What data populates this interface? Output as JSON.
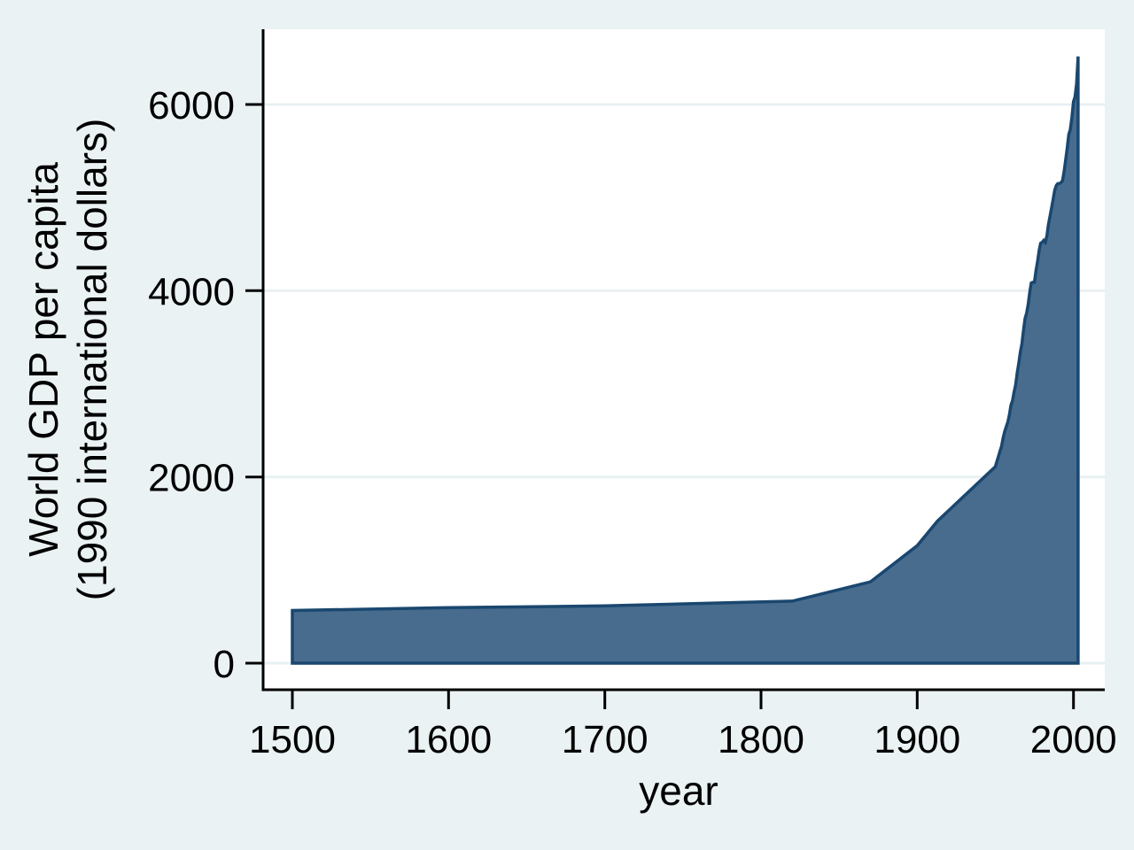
{
  "chart_data": {
    "type": "area",
    "title": "",
    "xlabel": "year",
    "ylabel_line1": "World GDP per capita",
    "ylabel_line2": "(1990 international dollars)",
    "x_ticks": [
      1500,
      1600,
      1700,
      1800,
      1900,
      2000
    ],
    "y_ticks": [
      0,
      2000,
      4000,
      6000
    ],
    "xlim": [
      1481,
      2020
    ],
    "ylim": [
      0,
      6820
    ],
    "grid": true,
    "legend_position": "none",
    "series": [
      {
        "name": "World GDP per capita (1990 international dollars)",
        "points": [
          [
            1500,
            566
          ],
          [
            1600,
            596
          ],
          [
            1700,
            615
          ],
          [
            1820,
            667
          ],
          [
            1870,
            873
          ],
          [
            1900,
            1262
          ],
          [
            1913,
            1526
          ],
          [
            1950,
            2111
          ],
          [
            1951,
            2165
          ],
          [
            1952,
            2220
          ],
          [
            1953,
            2280
          ],
          [
            1954,
            2330
          ],
          [
            1955,
            2420
          ],
          [
            1956,
            2490
          ],
          [
            1957,
            2540
          ],
          [
            1958,
            2590
          ],
          [
            1959,
            2670
          ],
          [
            1960,
            2770
          ],
          [
            1961,
            2820
          ],
          [
            1962,
            2910
          ],
          [
            1963,
            2990
          ],
          [
            1964,
            3120
          ],
          [
            1965,
            3220
          ],
          [
            1966,
            3340
          ],
          [
            1967,
            3430
          ],
          [
            1968,
            3570
          ],
          [
            1969,
            3700
          ],
          [
            1970,
            3760
          ],
          [
            1971,
            3850
          ],
          [
            1972,
            3980
          ],
          [
            1973,
            4083
          ],
          [
            1974,
            4090
          ],
          [
            1975,
            4091
          ],
          [
            1976,
            4210
          ],
          [
            1977,
            4310
          ],
          [
            1978,
            4430
          ],
          [
            1979,
            4510
          ],
          [
            1980,
            4520
          ],
          [
            1981,
            4540
          ],
          [
            1982,
            4520
          ],
          [
            1983,
            4590
          ],
          [
            1984,
            4710
          ],
          [
            1985,
            4800
          ],
          [
            1986,
            4890
          ],
          [
            1987,
            4980
          ],
          [
            1988,
            5080
          ],
          [
            1989,
            5130
          ],
          [
            1990,
            5150
          ],
          [
            1991,
            5150
          ],
          [
            1992,
            5160
          ],
          [
            1993,
            5180
          ],
          [
            1994,
            5280
          ],
          [
            1995,
            5400
          ],
          [
            1996,
            5530
          ],
          [
            1997,
            5680
          ],
          [
            1998,
            5730
          ],
          [
            1999,
            5860
          ],
          [
            2000,
            6030
          ],
          [
            2001,
            6080
          ],
          [
            2002,
            6220
          ],
          [
            2003,
            6516
          ]
        ]
      }
    ],
    "colors": {
      "page_background": "#eaf2f3",
      "plot_background": "#ffffff",
      "gridline": "#e8f0f2",
      "area_fill": "#486c8e",
      "area_line": "#1a476f",
      "axis": "#000000",
      "text": "#000000"
    }
  }
}
